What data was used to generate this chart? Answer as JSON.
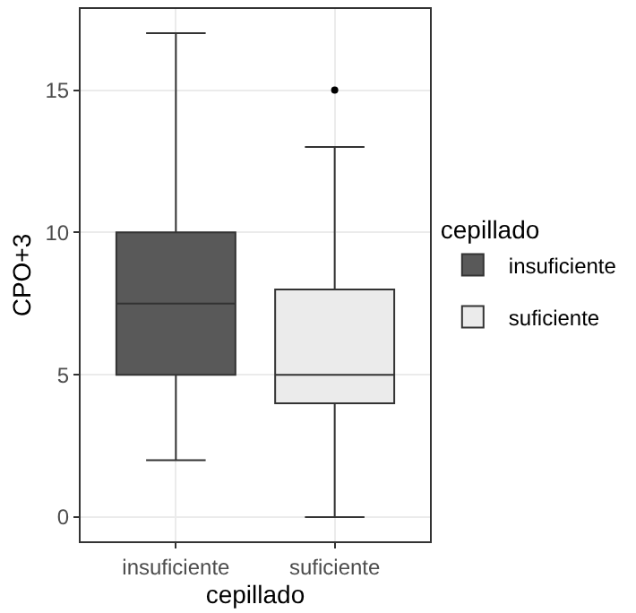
{
  "chart_data": {
    "type": "box",
    "xlabel": "cepillado",
    "ylabel": "CPO+3",
    "legend_title": "cepillado",
    "categories": [
      "insuficiente",
      "suficiente"
    ],
    "ylim": [
      -0.85,
      17.85
    ],
    "yticks": [
      0,
      5,
      10,
      15
    ],
    "grid": true,
    "legend": "right",
    "series": [
      {
        "name": "insuficiente",
        "color": "#595959",
        "boxes": [
          {
            "low": 2,
            "q1": 5,
            "median": 7.5,
            "q3": 10,
            "high": 17
          },
          null
        ]
      },
      {
        "name": "suficiente",
        "color": "#ebebeb",
        "boxes": [
          null,
          {
            "low": 0,
            "q1": 4,
            "median": 5,
            "q3": 8,
            "high": 13,
            "outliers": [
              15
            ]
          }
        ]
      }
    ]
  }
}
